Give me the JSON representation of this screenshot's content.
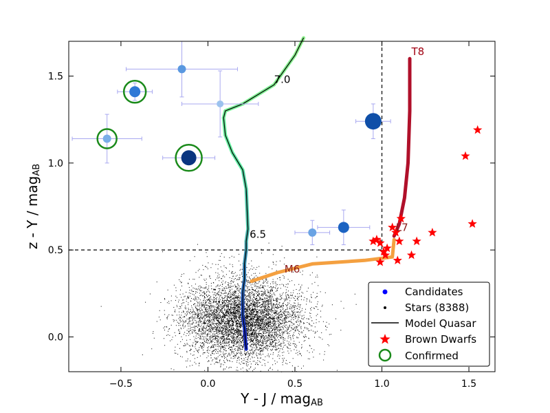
{
  "chart_data": {
    "type": "scatter",
    "title": "",
    "xlabel": "Y - J / mag",
    "xlabel_sub": "AB",
    "ylabel": "z - Y / mag",
    "ylabel_sub": "AB",
    "xlim": [
      -0.8,
      1.65
    ],
    "ylim": [
      -0.2,
      1.7
    ],
    "x_ticks": [
      -0.5,
      0.0,
      0.5,
      1.0,
      1.5
    ],
    "x_tick_labels": [
      "−0.5",
      "0.0",
      "0.5",
      "1.0",
      "1.5"
    ],
    "y_ticks": [
      0.0,
      0.5,
      1.0,
      1.5
    ],
    "y_tick_labels": [
      "0.0",
      "0.5",
      "1.0",
      "1.5"
    ],
    "cut_lines": {
      "vertical_x": 1.0,
      "horizontal_y": 0.5
    },
    "stars": {
      "label": "Stars (8388)",
      "count": 8388,
      "center": [
        0.2,
        0.1
      ],
      "spread": [
        0.17,
        0.09
      ]
    },
    "candidates": {
      "label": "Candidates",
      "points": [
        {
          "x": -0.42,
          "y": 1.41,
          "xerr": 0.1,
          "yerr": 0.05,
          "size": 8,
          "color": "#2f78d6",
          "confirmed": true
        },
        {
          "x": -0.58,
          "y": 1.14,
          "xerr": 0.2,
          "yerr": 0.14,
          "size": 6,
          "color": "#7aaee8",
          "confirmed": true
        },
        {
          "x": -0.11,
          "y": 1.03,
          "xerr": 0.15,
          "yerr": 0.04,
          "size": 11,
          "color": "#0a3580",
          "confirmed": true
        },
        {
          "x": -0.15,
          "y": 1.54,
          "xerr": 0.32,
          "yerr": 0.16,
          "size": 6,
          "color": "#5a98e0",
          "confirmed": false
        },
        {
          "x": 0.07,
          "y": 1.34,
          "xerr": 0.22,
          "yerr": 0.19,
          "size": 5,
          "color": "#9cc2ee",
          "confirmed": false
        },
        {
          "x": 0.95,
          "y": 1.24,
          "xerr": 0.1,
          "yerr": 0.1,
          "size": 12,
          "color": "#0f4fa8",
          "confirmed": false
        },
        {
          "x": 0.78,
          "y": 0.63,
          "xerr": 0.15,
          "yerr": 0.1,
          "size": 8,
          "color": "#1c63c2",
          "confirmed": false
        },
        {
          "x": 0.6,
          "y": 0.6,
          "xerr": 0.1,
          "yerr": 0.07,
          "size": 6,
          "color": "#6aa3e4",
          "confirmed": false
        }
      ]
    },
    "model_quasar": {
      "label": "Model Quasar",
      "x": [
        0.22,
        0.21,
        0.2,
        0.2,
        0.2,
        0.21,
        0.21,
        0.22,
        0.22,
        0.23,
        0.22,
        0.2,
        0.14,
        0.1,
        0.09,
        0.1,
        0.2,
        0.38,
        0.5,
        0.55
      ],
      "y": [
        -0.07,
        0.05,
        0.12,
        0.2,
        0.26,
        0.33,
        0.42,
        0.5,
        0.55,
        0.62,
        0.85,
        0.96,
        1.06,
        1.16,
        1.26,
        1.3,
        1.34,
        1.45,
        1.62,
        1.72
      ],
      "labels": [
        {
          "text": "6.5",
          "x": 0.24,
          "y": 0.57
        },
        {
          "text": "7.0",
          "x": 0.38,
          "y": 1.46
        }
      ]
    },
    "brown_dwarf_tracks": {
      "orange": {
        "x": [
          0.25,
          0.4,
          0.6,
          0.9,
          1.06,
          1.07
        ],
        "y": [
          0.32,
          0.37,
          0.42,
          0.44,
          0.46,
          0.56
        ]
      },
      "red": {
        "x": [
          1.07,
          1.1,
          1.13,
          1.15,
          1.16,
          1.16
        ],
        "y": [
          0.58,
          0.65,
          0.8,
          1.0,
          1.3,
          1.6
        ]
      },
      "labels": [
        {
          "text": "M6",
          "x": 0.44,
          "y": 0.37,
          "color": "#8b1a1a"
        },
        {
          "text": "L7",
          "x": 1.08,
          "y": 0.61,
          "color": "#8b1a1a"
        },
        {
          "text": "T8",
          "x": 1.17,
          "y": 1.62,
          "color": "#a00010"
        }
      ]
    },
    "brown_dwarfs": {
      "label": "Brown Dwarfs",
      "x": [
        0.95,
        0.97,
        0.99,
        1.01,
        1.03,
        1.02,
        0.99,
        1.06,
        1.08,
        1.11,
        1.1,
        1.17,
        1.2,
        1.29,
        1.48,
        1.52,
        1.55,
        1.09
      ],
      "y": [
        0.55,
        0.56,
        0.54,
        0.49,
        0.51,
        0.47,
        0.43,
        0.63,
        0.6,
        0.68,
        0.55,
        0.47,
        0.55,
        0.6,
        1.04,
        0.65,
        1.19,
        0.44
      ]
    },
    "confirmed_label": "Confirmed"
  },
  "colors": {
    "candidate": "#1f5fd0",
    "stars": "#000000",
    "brown_dwarf": "#ff0000",
    "confirmed": "#1a8a1a",
    "errorbar": "#a8a8f0",
    "orange_track": "#f4a040",
    "red_track": "#b0102a"
  }
}
